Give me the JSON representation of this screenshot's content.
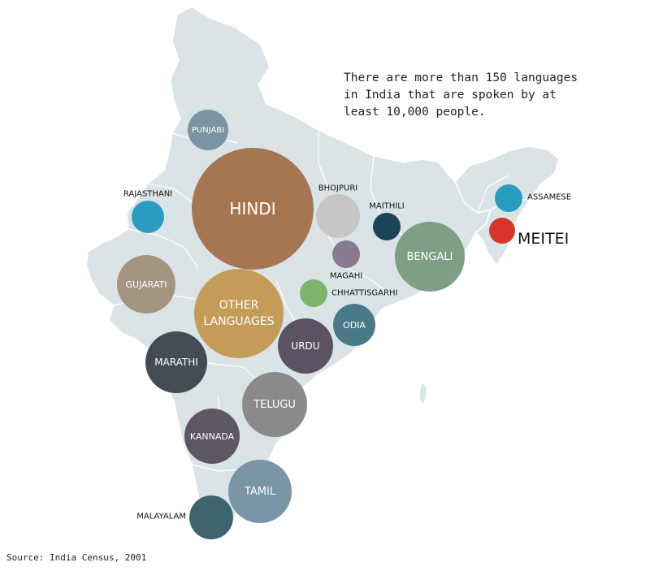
{
  "note": "There are more than 150 languages\nin India that are spoken by at\nleast 10,000 people.",
  "source": "Source: India Census, 2001",
  "colors": {
    "map_fill": "#dae4e7",
    "map_border": "#ffffff"
  },
  "languages": [
    {
      "name": "HINDI",
      "color": "#a67652"
    },
    {
      "name": "OTHER\nLANGUAGES",
      "color": "#c49c58"
    },
    {
      "name": "BENGALI",
      "color": "#7f9e86"
    },
    {
      "name": "TELUGU",
      "color": "#8a8a8a"
    },
    {
      "name": "TAMIL",
      "color": "#7a95a6"
    },
    {
      "name": "MARATHI",
      "color": "#434c52"
    },
    {
      "name": "URDU",
      "color": "#5b5362"
    },
    {
      "name": "GUJARATI",
      "color": "#a49580"
    },
    {
      "name": "KANNADA",
      "color": "#5e5663"
    },
    {
      "name": "MALAYALAM",
      "color": "#3e6470"
    },
    {
      "name": "ODIA",
      "color": "#4a7a88"
    },
    {
      "name": "PUNJABI",
      "color": "#7a94a1"
    },
    {
      "name": "BHOJPURI",
      "color": "#c6c6c6"
    },
    {
      "name": "RAJASTHANI",
      "color": "#2a9dbf"
    },
    {
      "name": "MAITHILI",
      "color": "#1b4556"
    },
    {
      "name": "ASSAMESE",
      "color": "#2a9dbf"
    },
    {
      "name": "MAGAHI",
      "color": "#887a91"
    },
    {
      "name": "CHHATTISGARHI",
      "color": "#7cb56b"
    },
    {
      "name": "MEITEI",
      "color": "#d9342b"
    }
  ]
}
